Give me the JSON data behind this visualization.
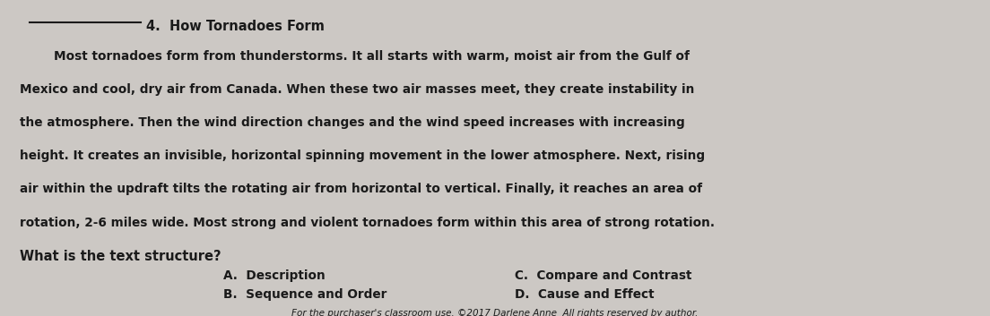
{
  "bg_color": "#ccc8c4",
  "title": "4.  How Tornadoes Form",
  "body_lines": [
    "        Most tornadoes form from thunderstorms. It all starts with warm, moist air from the Gulf of",
    "Mexico and cool, dry air from Canada. When these two air masses meet, they create instability in",
    "the atmosphere. Then the wind direction changes and the wind speed increases with increasing",
    "height. It creates an invisible, horizontal spinning movement in the lower atmosphere. Next, rising",
    "air within the updraft tilts the rotating air from horizontal to vertical. Finally, it reaches an area of",
    "rotation, 2-6 miles wide. Most strong and violent tornadoes form within this area of strong rotation."
  ],
  "question_text": "What is the text structure?",
  "answer_A": "A.  Description",
  "answer_B": "B.  Sequence and Order",
  "answer_C": "C.  Compare and Contrast",
  "answer_D": "D.  Cause and Effect",
  "footer_text": "For the purchaser's classroom use. ©2017 Darlene Anne  All rights reserved by author.",
  "text_color": "#1a1a1a",
  "body_fontsize": 9.8,
  "title_fontsize": 10.5,
  "question_fontsize": 10.5,
  "answer_fontsize": 9.8,
  "footer_fontsize": 7.5
}
